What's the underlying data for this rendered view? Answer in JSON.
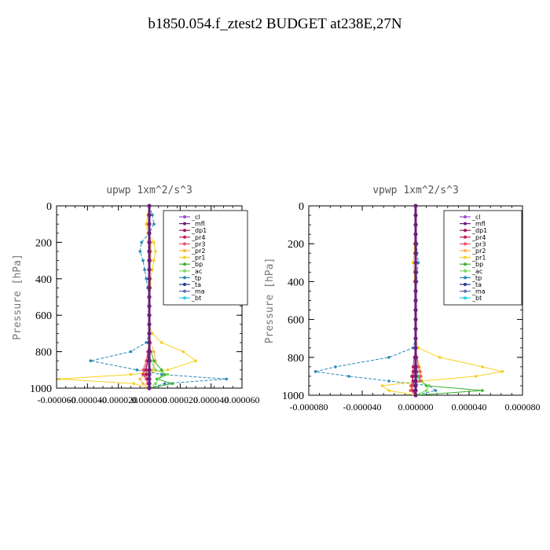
{
  "title": "b1850.054.f_ztest2  BUDGET at238E,27N",
  "legend_entries": [
    "_cl",
    "_mfl",
    "_dp1",
    "_pr4",
    "_pr3",
    "_pr2",
    "_pr1",
    "_bp",
    "_ac",
    "_tp",
    "_ta",
    "_ma",
    "_bt"
  ],
  "colors": {
    "_cl": "#9a4fd0",
    "_mfl": "#6b1f7a",
    "_dp1": "#a0185a",
    "_pr4": "#c81e4e",
    "_pr3": "#f0506e",
    "_pr2": "#ffb347",
    "_pr1": "#f5d020",
    "_bp": "#38b030",
    "_ac": "#7ad860",
    "_tp": "#2a8ab8",
    "_ta": "#1b3c8c",
    "_ma": "#5b6fb0",
    "_bt": "#20d0e8"
  },
  "chart_data": [
    {
      "type": "line",
      "title": "upwp    1xm^2/s^3",
      "ylabel": "Pressure  [hPa]",
      "ylim": [
        0,
        1000
      ],
      "y_inverted": true,
      "xlim": [
        -6e-05,
        6e-05
      ],
      "xticks": [
        "-0.000060",
        "-0.000040",
        "-0.000020",
        "0.000000",
        "0.000020",
        "0.000040",
        "0.000060"
      ],
      "yticks": [
        "0",
        "200",
        "400",
        "600",
        "800",
        "1000"
      ],
      "pressure": [
        0,
        50,
        100,
        150,
        200,
        250,
        300,
        350,
        400,
        450,
        500,
        550,
        600,
        650,
        700,
        750,
        800,
        850,
        900,
        925,
        950,
        975,
        1000
      ],
      "series": [
        {
          "name": "_tp",
          "values": [
            0,
            2e-06,
            3e-06,
            0,
            -5e-06,
            -6e-06,
            -4e-06,
            -3e-06,
            -2e-06,
            -1e-06,
            0,
            0,
            0,
            0,
            0,
            -2e-06,
            -1.2e-05,
            -3.8e-05,
            -8e-06,
            8e-06,
            5e-05,
            1e-05,
            0
          ]
        },
        {
          "name": "_pr1",
          "values": [
            0,
            -1e-06,
            -2e-06,
            -1e-06,
            3e-06,
            4e-06,
            3e-06,
            2e-06,
            1e-06,
            1e-06,
            0,
            0,
            0,
            0,
            2e-06,
            8e-06,
            2.2e-05,
            3e-05,
            1.2e-05,
            -1.2e-05,
            -5.8e-05,
            -1e-05,
            0
          ]
        },
        {
          "name": "_pr2",
          "values": [
            0,
            0,
            -1e-06,
            0,
            1e-06,
            1e-06,
            1e-06,
            0,
            0,
            0,
            0,
            0,
            0,
            0,
            0,
            1e-06,
            3e-06,
            4e-06,
            2e-06,
            -3e-06,
            -6e-06,
            -4e-06,
            0
          ]
        },
        {
          "name": "_bp",
          "values": [
            0,
            0,
            0,
            0,
            0,
            0,
            0,
            0,
            0,
            0,
            0,
            0,
            0,
            0,
            0,
            0,
            1e-06,
            3e-06,
            8e-06,
            1e-05,
            5e-06,
            1.5e-05,
            0
          ]
        },
        {
          "name": "_ac",
          "values": [
            0,
            0,
            0,
            0,
            0,
            0,
            0,
            0,
            0,
            0,
            0,
            0,
            0,
            0,
            0,
            0,
            0,
            1e-06,
            4e-06,
            1.2e-05,
            6e-06,
            4e-06,
            0
          ]
        },
        {
          "name": "_pr4",
          "values": [
            0,
            0,
            0,
            0,
            0,
            0,
            0,
            0,
            0,
            0,
            0,
            0,
            0,
            0,
            0,
            0,
            -1e-06,
            -1e-06,
            -3e-06,
            -4e-06,
            -2e-06,
            -1e-06,
            0
          ]
        },
        {
          "name": "_pr3",
          "values": [
            0,
            0,
            0,
            0,
            0,
            0,
            0,
            0,
            0,
            0,
            0,
            0,
            0,
            0,
            0,
            0,
            -1e-06,
            -2e-06,
            -4e-06,
            -3e-06,
            -2e-06,
            -1e-06,
            0
          ]
        },
        {
          "name": "_dp1",
          "values": [
            0,
            0,
            0,
            0,
            0,
            0,
            0,
            0,
            0,
            0,
            0,
            0,
            0,
            0,
            0,
            0,
            0,
            -1e-06,
            -2e-06,
            -2e-06,
            -1e-06,
            0,
            0
          ]
        },
        {
          "name": "_bt",
          "values": [
            0,
            0,
            0,
            0,
            0,
            0,
            0,
            0,
            0,
            0,
            0,
            0,
            0,
            0,
            0,
            0,
            0,
            0,
            0,
            0,
            0,
            0,
            0
          ]
        },
        {
          "name": "_mfl",
          "values": [
            0,
            0,
            0,
            0,
            0,
            0,
            0,
            0,
            0,
            0,
            0,
            0,
            0,
            0,
            0,
            0,
            0,
            0,
            0,
            0,
            0,
            0,
            0
          ]
        }
      ]
    },
    {
      "type": "line",
      "title": "vpwp    1xm^2/s^3",
      "ylabel": "Pressure  [hPa]",
      "ylim": [
        0,
        1000
      ],
      "y_inverted": true,
      "xlim": [
        -8e-05,
        8e-05
      ],
      "xticks": [
        "-0.000080",
        "-0.000040",
        "0.000000",
        "0.000040",
        "0.000080"
      ],
      "yticks": [
        "0",
        "200",
        "400",
        "600",
        "800",
        "1000"
      ],
      "pressure": [
        0,
        50,
        100,
        150,
        200,
        250,
        300,
        350,
        400,
        450,
        500,
        550,
        600,
        650,
        700,
        750,
        800,
        850,
        875,
        900,
        925,
        950,
        975,
        1000
      ],
      "series": [
        {
          "name": "_tp",
          "values": [
            0,
            0,
            0,
            0,
            1e-06,
            1e-06,
            2e-06,
            1e-06,
            1e-06,
            0,
            0,
            0,
            0,
            0,
            0,
            -2e-06,
            -2e-05,
            -6e-05,
            -7.5e-05,
            -5e-05,
            -2e-05,
            1e-05,
            1.5e-05,
            0
          ]
        },
        {
          "name": "_pr1",
          "values": [
            0,
            0,
            0,
            0,
            -1e-06,
            -1e-06,
            -2e-06,
            -1e-06,
            -1e-06,
            0,
            0,
            0,
            0,
            0,
            0,
            2e-06,
            1.8e-05,
            5e-05,
            6.5e-05,
            4.5e-05,
            5e-06,
            -2.5e-05,
            -2e-05,
            0
          ]
        },
        {
          "name": "_pr2",
          "values": [
            0,
            0,
            0,
            0,
            0,
            0,
            0,
            0,
            0,
            0,
            0,
            0,
            0,
            0,
            0,
            0,
            1e-06,
            3e-06,
            4e-06,
            3e-06,
            0,
            -4e-06,
            -3e-06,
            0
          ]
        },
        {
          "name": "_bp",
          "values": [
            0,
            0,
            0,
            0,
            0,
            0,
            0,
            0,
            0,
            0,
            0,
            0,
            0,
            0,
            0,
            0,
            0,
            1e-06,
            1e-06,
            2e-06,
            4e-06,
            8e-06,
            5e-05,
            0
          ]
        },
        {
          "name": "_ac",
          "values": [
            0,
            0,
            0,
            0,
            0,
            0,
            0,
            0,
            0,
            0,
            0,
            0,
            0,
            0,
            0,
            0,
            0,
            0,
            0,
            1e-06,
            3e-06,
            1e-05,
            8e-06,
            0
          ]
        },
        {
          "name": "_pr4",
          "values": [
            0,
            0,
            0,
            0,
            0,
            0,
            0,
            0,
            0,
            0,
            0,
            0,
            0,
            0,
            0,
            0,
            -1e-06,
            -2e-06,
            -2e-06,
            -3e-06,
            -2e-06,
            -3e-06,
            -2e-06,
            0
          ]
        },
        {
          "name": "_pr3",
          "values": [
            0,
            0,
            0,
            0,
            0,
            0,
            0,
            0,
            0,
            0,
            0,
            0,
            0,
            0,
            0,
            0,
            1e-06,
            2e-06,
            3e-06,
            4e-06,
            3e-06,
            -2e-06,
            -4e-06,
            0
          ]
        },
        {
          "name": "_dp1",
          "values": [
            0,
            0,
            0,
            0,
            0,
            0,
            0,
            0,
            0,
            0,
            0,
            0,
            0,
            0,
            0,
            0,
            0,
            -1e-06,
            -1e-06,
            -2e-06,
            -2e-06,
            -1e-06,
            0,
            0
          ]
        },
        {
          "name": "_bt",
          "values": [
            0,
            0,
            0,
            0,
            0,
            0,
            0,
            0,
            0,
            0,
            0,
            0,
            0,
            0,
            0,
            0,
            0,
            0,
            0,
            0,
            0,
            0,
            0,
            0
          ]
        },
        {
          "name": "_mfl",
          "values": [
            0,
            0,
            0,
            0,
            0,
            0,
            0,
            0,
            0,
            0,
            0,
            0,
            0,
            0,
            0,
            0,
            0,
            0,
            0,
            0,
            0,
            0,
            0,
            0
          ]
        }
      ]
    }
  ]
}
